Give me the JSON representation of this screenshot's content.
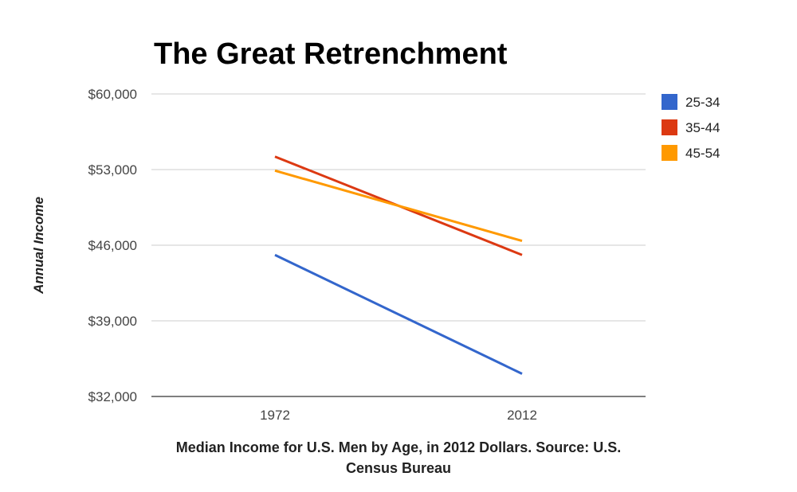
{
  "chart_data": {
    "type": "line",
    "title": "The Great Retrenchment",
    "xlabel_lines": [
      "Median Income for U.S. Men by Age, in 2012 Dollars. Source: U.S.",
      "Census Bureau"
    ],
    "ylabel": "Annual Income",
    "x": [
      "1972",
      "2012"
    ],
    "ylim": [
      32000,
      60000
    ],
    "y_ticks": [
      60000,
      53000,
      46000,
      39000,
      32000
    ],
    "y_tick_labels": [
      "$60,000",
      "$53,000",
      "$46,000",
      "$39,000",
      "$32,000"
    ],
    "grid": true,
    "legend_position": "right",
    "series": [
      {
        "name": "25-34",
        "color": "#3366cc",
        "values": [
          45100,
          34100
        ]
      },
      {
        "name": "35-44",
        "color": "#dc3912",
        "values": [
          54200,
          45100
        ]
      },
      {
        "name": "45-54",
        "color": "#ff9900",
        "values": [
          52900,
          46400
        ]
      }
    ]
  }
}
